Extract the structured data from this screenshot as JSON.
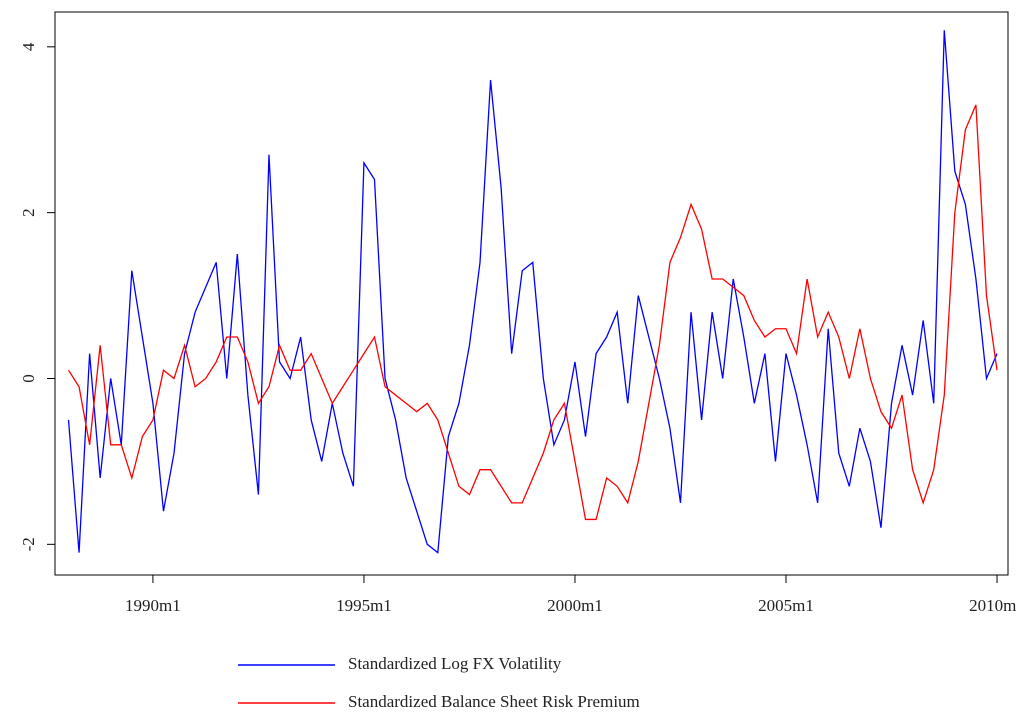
{
  "chart_data": {
    "type": "line",
    "x": [
      1988,
      1988.25,
      1988.5,
      1988.75,
      1989,
      1989.25,
      1989.5,
      1989.75,
      1990,
      1990.25,
      1990.5,
      1990.75,
      1991,
      1991.25,
      1991.5,
      1991.75,
      1992,
      1992.25,
      1992.5,
      1992.75,
      1993,
      1993.25,
      1993.5,
      1993.75,
      1994,
      1994.25,
      1994.5,
      1994.75,
      1995,
      1995.25,
      1995.5,
      1995.75,
      1996,
      1996.25,
      1996.5,
      1996.75,
      1997,
      1997.25,
      1997.5,
      1997.75,
      1998,
      1998.25,
      1998.5,
      1998.75,
      1999,
      1999.25,
      1999.5,
      1999.75,
      2000,
      2000.25,
      2000.5,
      2000.75,
      2001,
      2001.25,
      2001.5,
      2001.75,
      2002,
      2002.25,
      2002.5,
      2002.75,
      2003,
      2003.25,
      2003.5,
      2003.75,
      2004,
      2004.25,
      2004.5,
      2004.75,
      2005,
      2005.25,
      2005.5,
      2005.75,
      2006,
      2006.25,
      2006.5,
      2006.75,
      2007,
      2007.25,
      2007.5,
      2007.75,
      2008,
      2008.25,
      2008.5,
      2008.75,
      2009,
      2009.25,
      2009.5,
      2009.75,
      2010
    ],
    "series": [
      {
        "name": "Standardized Log FX Volatility",
        "color": "#0000ff",
        "values": [
          -0.5,
          -2.1,
          0.3,
          -1.2,
          0,
          -0.8,
          1.3,
          0.5,
          -0.3,
          -1.6,
          -0.9,
          0.3,
          0.8,
          1.1,
          1.4,
          0,
          1.5,
          -0.2,
          -1.4,
          2.7,
          0.2,
          0,
          0.5,
          -0.5,
          -1.0,
          -0.3,
          -0.9,
          -1.3,
          2.6,
          2.4,
          0,
          -0.5,
          -1.2,
          -1.6,
          -2.0,
          -2.1,
          -0.7,
          -0.3,
          0.4,
          1.4,
          3.6,
          2.3,
          0.3,
          1.3,
          1.4,
          0,
          -0.8,
          -0.5,
          0.2,
          -0.7,
          0.3,
          0.5,
          0.8,
          -0.3,
          1.0,
          0.5,
          0,
          -0.6,
          -1.5,
          0.8,
          -0.5,
          0.8,
          0,
          1.2,
          0.5,
          -0.3,
          0.3,
          -1.0,
          0.3,
          -0.2,
          -0.8,
          -1.5,
          0.6,
          -0.9,
          -1.3,
          -0.6,
          -1.0,
          -1.8,
          -0.3,
          0.4,
          -0.2,
          0.7,
          -0.3,
          4.2,
          2.5,
          2.1,
          1.2,
          0,
          0.3
        ]
      },
      {
        "name": "Standardized Balance Sheet Risk Premium",
        "color": "#ff0000",
        "values": [
          0.1,
          -0.1,
          -0.8,
          0.4,
          -0.8,
          -0.8,
          -1.2,
          -0.7,
          -0.5,
          0.1,
          0,
          0.4,
          -0.1,
          0,
          0.2,
          0.5,
          0.5,
          0.2,
          -0.3,
          -0.1,
          0.4,
          0.1,
          0.1,
          0.3,
          0,
          -0.3,
          -0.1,
          0.1,
          0.3,
          0.5,
          -0.1,
          -0.2,
          -0.3,
          -0.4,
          -0.3,
          -0.5,
          -0.9,
          -1.3,
          -1.4,
          -1.1,
          -1.1,
          -1.3,
          -1.5,
          -1.5,
          -1.2,
          -0.9,
          -0.5,
          -0.3,
          -1.0,
          -1.7,
          -1.7,
          -1.2,
          -1.3,
          -1.5,
          -1.0,
          -0.3,
          0.4,
          1.4,
          1.7,
          2.1,
          1.8,
          1.2,
          1.2,
          1.1,
          1.0,
          0.7,
          0.5,
          0.6,
          0.6,
          0.3,
          1.2,
          0.5,
          0.8,
          0.5,
          0,
          0.6,
          0,
          -0.4,
          -0.6,
          -0.2,
          -1.1,
          -1.5,
          -1.1,
          -0.2,
          2.0,
          3.0,
          3.3,
          1.0,
          0.1
        ]
      }
    ],
    "xlim": [
      1987.68,
      2010.26
    ],
    "ylim": [
      -2.37,
      4.42
    ],
    "xticks": [
      {
        "value": 1990,
        "label": "1990m1"
      },
      {
        "value": 1995,
        "label": "1995m1"
      },
      {
        "value": 2000,
        "label": "2000m1"
      },
      {
        "value": 2005,
        "label": "2005m1"
      },
      {
        "value": 2010,
        "label": "2010m1"
      }
    ],
    "yticks": [
      -2,
      0,
      2,
      4
    ],
    "legend": "bottom"
  }
}
